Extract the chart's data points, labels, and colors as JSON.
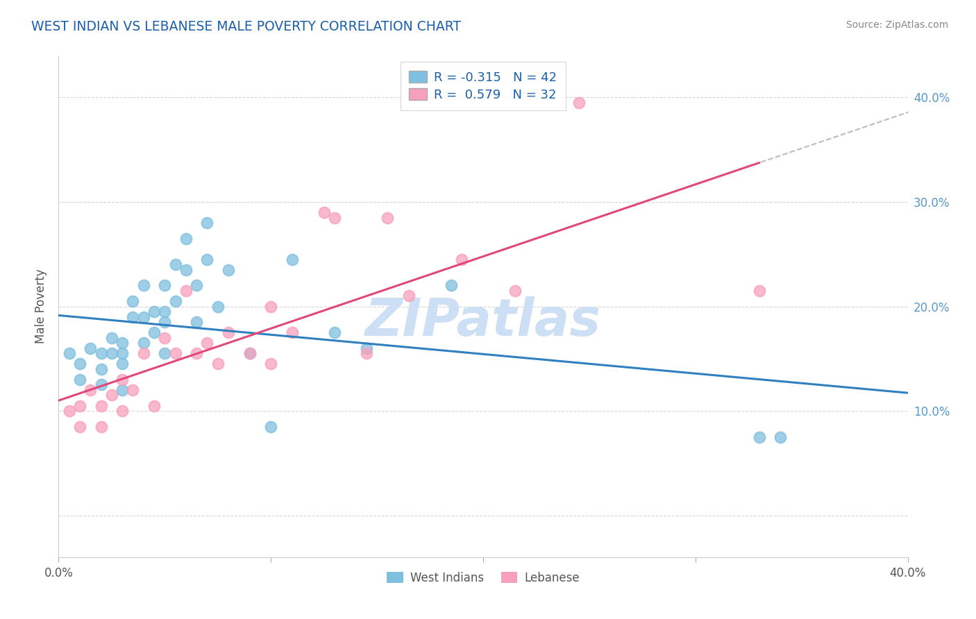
{
  "title": "WEST INDIAN VS LEBANESE MALE POVERTY CORRELATION CHART",
  "source": "Source: ZipAtlas.com",
  "ylabel": "Male Poverty",
  "yticks": [
    0.0,
    0.1,
    0.2,
    0.3,
    0.4
  ],
  "ytick_labels": [
    "",
    "10.0%",
    "20.0%",
    "30.0%",
    "40.0%"
  ],
  "xlim": [
    0.0,
    0.4
  ],
  "ylim": [
    -0.04,
    0.44
  ],
  "west_indian_R": -0.315,
  "west_indian_N": 42,
  "lebanese_R": 0.579,
  "lebanese_N": 32,
  "west_indian_color": "#7fbfdf",
  "lebanese_color": "#f8a0bb",
  "west_indian_line_color": "#3080c0",
  "lebanese_line_color": "#e04878",
  "dashed_line_color": "#bbbbbb",
  "background_color": "#ffffff",
  "grid_color": "#cccccc",
  "title_color": "#1a5fa8",
  "west_indian_x": [
    0.005,
    0.01,
    0.01,
    0.015,
    0.02,
    0.02,
    0.02,
    0.025,
    0.025,
    0.03,
    0.03,
    0.03,
    0.03,
    0.035,
    0.035,
    0.04,
    0.04,
    0.04,
    0.045,
    0.045,
    0.05,
    0.05,
    0.05,
    0.05,
    0.055,
    0.055,
    0.06,
    0.06,
    0.065,
    0.065,
    0.07,
    0.07,
    0.075,
    0.08,
    0.09,
    0.1,
    0.11,
    0.13,
    0.145,
    0.185,
    0.33,
    0.34
  ],
  "west_indian_y": [
    0.155,
    0.145,
    0.13,
    0.16,
    0.155,
    0.14,
    0.125,
    0.17,
    0.155,
    0.165,
    0.155,
    0.145,
    0.12,
    0.205,
    0.19,
    0.22,
    0.19,
    0.165,
    0.195,
    0.175,
    0.22,
    0.195,
    0.185,
    0.155,
    0.24,
    0.205,
    0.265,
    0.235,
    0.22,
    0.185,
    0.28,
    0.245,
    0.2,
    0.235,
    0.155,
    0.085,
    0.245,
    0.175,
    0.16,
    0.22,
    0.075,
    0.075
  ],
  "lebanese_x": [
    0.005,
    0.01,
    0.01,
    0.015,
    0.02,
    0.02,
    0.025,
    0.03,
    0.03,
    0.035,
    0.04,
    0.045,
    0.05,
    0.055,
    0.06,
    0.065,
    0.07,
    0.075,
    0.08,
    0.09,
    0.1,
    0.1,
    0.11,
    0.125,
    0.13,
    0.145,
    0.155,
    0.165,
    0.19,
    0.215,
    0.245,
    0.33
  ],
  "lebanese_y": [
    0.1,
    0.105,
    0.085,
    0.12,
    0.105,
    0.085,
    0.115,
    0.13,
    0.1,
    0.12,
    0.155,
    0.105,
    0.17,
    0.155,
    0.215,
    0.155,
    0.165,
    0.145,
    0.175,
    0.155,
    0.2,
    0.145,
    0.175,
    0.29,
    0.285,
    0.155,
    0.285,
    0.21,
    0.245,
    0.215,
    0.395,
    0.215
  ],
  "watermark": "ZIPatlas",
  "watermark_color": "#ccdff5"
}
